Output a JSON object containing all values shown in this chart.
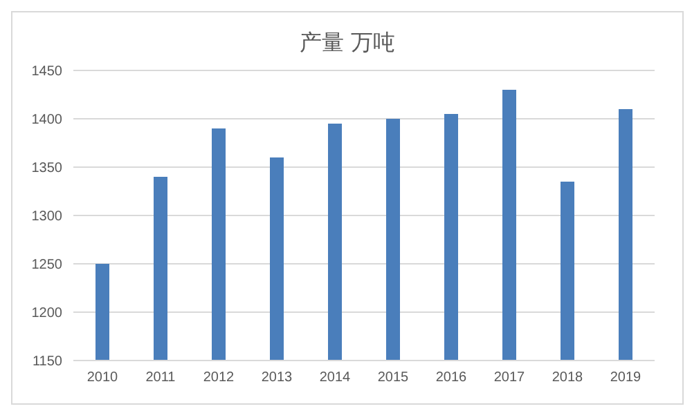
{
  "chart_data": {
    "type": "bar",
    "title": "产量  万吨",
    "categories": [
      "2010",
      "2011",
      "2012",
      "2013",
      "2014",
      "2015",
      "2016",
      "2017",
      "2018",
      "2019"
    ],
    "values": [
      1250,
      1340,
      1390,
      1360,
      1395,
      1400,
      1405,
      1430,
      1335,
      1410
    ],
    "color": "#4a7ebb",
    "ylim": [
      1150,
      1450
    ],
    "yticks": [
      1150,
      1200,
      1250,
      1300,
      1350,
      1400,
      1450
    ],
    "grid": "y"
  }
}
